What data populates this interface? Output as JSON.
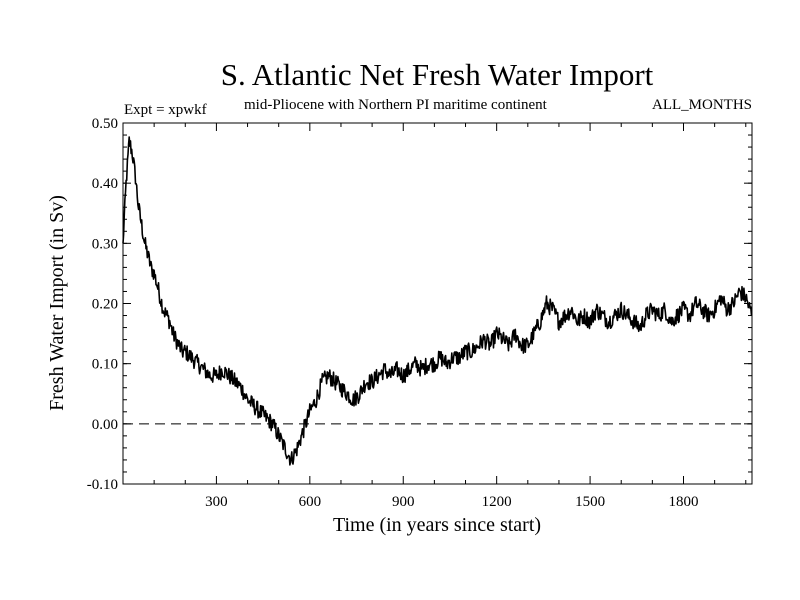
{
  "chart_data": {
    "type": "line",
    "title": "S. Atlantic Net Fresh Water Import",
    "subtitle_left": "Expt = xpwkf",
    "subtitle_center": "mid-Pliocene with Northern PI maritime continent",
    "subtitle_right": "ALL_MONTHS",
    "xlabel": "Time (in years since start)",
    "ylabel": "Fresh Water Import (in Sv)",
    "xlim": [
      0,
      2020
    ],
    "ylim": [
      -0.1,
      0.5
    ],
    "xticks": [
      300,
      600,
      900,
      1200,
      1500,
      1800
    ],
    "yticks": [
      -0.1,
      0.0,
      0.1,
      0.2,
      0.3,
      0.4,
      0.5
    ],
    "ytick_labels": [
      "-0.10",
      "0.00",
      "0.10",
      "0.20",
      "0.30",
      "0.40",
      "0.50"
    ],
    "reference_line": {
      "y": 0.0,
      "style": "dashed"
    },
    "series": [
      {
        "name": "net fresh water import",
        "x": [
          0,
          10,
          20,
          30,
          40,
          50,
          60,
          70,
          80,
          90,
          100,
          110,
          120,
          130,
          140,
          150,
          160,
          170,
          180,
          190,
          200,
          220,
          240,
          260,
          280,
          300,
          320,
          340,
          360,
          380,
          400,
          420,
          440,
          460,
          480,
          500,
          520,
          540,
          560,
          580,
          600,
          620,
          640,
          660,
          680,
          700,
          720,
          740,
          760,
          780,
          800,
          820,
          840,
          860,
          880,
          900,
          920,
          940,
          960,
          980,
          1000,
          1020,
          1040,
          1060,
          1080,
          1100,
          1120,
          1140,
          1160,
          1180,
          1200,
          1220,
          1240,
          1260,
          1280,
          1300,
          1320,
          1340,
          1360,
          1380,
          1400,
          1420,
          1440,
          1460,
          1480,
          1500,
          1520,
          1540,
          1560,
          1580,
          1600,
          1620,
          1640,
          1660,
          1680,
          1700,
          1720,
          1740,
          1760,
          1780,
          1800,
          1820,
          1840,
          1860,
          1880,
          1900,
          1920,
          1940,
          1960,
          1980,
          2000,
          2020
        ],
        "y": [
          0.3,
          0.4,
          0.47,
          0.45,
          0.41,
          0.36,
          0.33,
          0.3,
          0.28,
          0.26,
          0.25,
          0.23,
          0.21,
          0.19,
          0.18,
          0.17,
          0.15,
          0.14,
          0.13,
          0.12,
          0.12,
          0.11,
          0.1,
          0.09,
          0.08,
          0.08,
          0.09,
          0.08,
          0.07,
          0.06,
          0.04,
          0.03,
          0.02,
          0.01,
          0.0,
          -0.02,
          -0.04,
          -0.06,
          -0.04,
          -0.01,
          0.02,
          0.04,
          0.07,
          0.08,
          0.07,
          0.06,
          0.05,
          0.04,
          0.05,
          0.07,
          0.07,
          0.08,
          0.09,
          0.08,
          0.09,
          0.08,
          0.09,
          0.1,
          0.09,
          0.1,
          0.1,
          0.11,
          0.1,
          0.11,
          0.11,
          0.12,
          0.12,
          0.13,
          0.14,
          0.13,
          0.15,
          0.14,
          0.13,
          0.15,
          0.13,
          0.13,
          0.15,
          0.17,
          0.2,
          0.19,
          0.17,
          0.18,
          0.19,
          0.17,
          0.18,
          0.17,
          0.19,
          0.18,
          0.17,
          0.18,
          0.19,
          0.18,
          0.17,
          0.16,
          0.18,
          0.19,
          0.18,
          0.19,
          0.17,
          0.18,
          0.19,
          0.18,
          0.2,
          0.19,
          0.18,
          0.19,
          0.21,
          0.19,
          0.2,
          0.22,
          0.21,
          0.18
        ]
      }
    ]
  }
}
